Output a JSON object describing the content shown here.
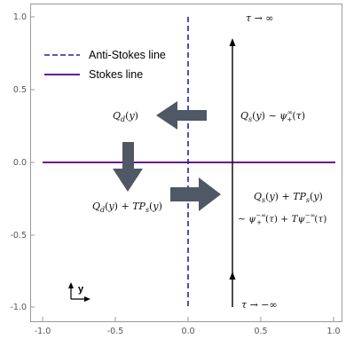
{
  "axes": {
    "x_ticks": [
      "-1.0",
      "-0.5",
      "0.0",
      "0.5",
      "1.0"
    ],
    "y_ticks": [
      "1.0",
      "0.5",
      "0.0",
      "-0.5",
      "-1.0"
    ]
  },
  "legend": {
    "anti_stokes": "Anti-Stokes line",
    "stokes": "Stokes line"
  },
  "labels": {
    "tau_top": "τ → ∞",
    "tau_bottom": "τ → −∞",
    "qd": "Q_d(y)",
    "qs_top": "Q_s(y) ∼ ψ₊^∞(τ)",
    "qd_plus": "Q_d(y) + TP_s(y)",
    "qs_plus": "Q_s(y) + TP_s(y)",
    "psi_sum": "∼ ψ₊^{−∞}(τ) + Tψ₋^{−∞}(τ)",
    "inset_axis": "y"
  },
  "colors": {
    "anti_stokes": "#1f1fbf",
    "stokes": "#6a0f8e",
    "arrow_gray": "#4f5864",
    "frame": "#9a9a9a"
  }
}
